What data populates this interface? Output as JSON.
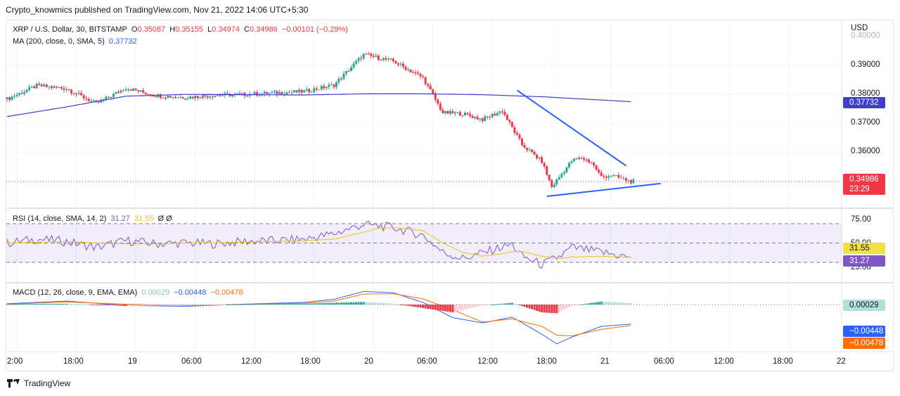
{
  "header": "Crypto_knowmics published on TradingView.com, Nov 21, 2022 14:06 UTC+5:30",
  "footer": {
    "brand": "TradingView"
  },
  "main_legend": {
    "symbol": "XRP / U.S. Dollar, 30, BITSTAMP",
    "open_label": "O",
    "open": "0.35087",
    "high_label": "H",
    "high": "0.35155",
    "low_label": "L",
    "low": "0.34974",
    "close_label": "C",
    "close": "0.34986",
    "change": "−0.00101 (−0.29%)",
    "ma_label": "MA (200, close, 0, SMA, 5)",
    "ma_value": "0.37732"
  },
  "rsi_legend": {
    "label": "RSI (14, close, SMA, 14, 2)",
    "rsi": "31.27",
    "sma": "31.55",
    "extra": "Ø Ø"
  },
  "macd_legend": {
    "label": "MACD (12, 26, close, 9, EMA, EMA)",
    "hist": "0.00029",
    "macd": "−0.00448",
    "signal": "−0.00478"
  },
  "price_axis": {
    "currency": "USD",
    "ticks": [
      "0.40000",
      "0.39000",
      "0.38000",
      "0.37000",
      "0.36000"
    ]
  },
  "rsi_axis": {
    "ticks": [
      "75.00",
      "50.00",
      "25.00"
    ]
  },
  "tags": {
    "ma": "0.37732",
    "last_price": "0.34986",
    "countdown": "23:29",
    "rsi_sma": "31.55",
    "rsi": "31.27",
    "macd_hist": "0.00029",
    "macd": "−0.00448",
    "macd_signal": "−0.00478"
  },
  "time_axis": [
    "2:00",
    "18:00",
    "19",
    "06:00",
    "12:00",
    "18:00",
    "20",
    "06:00",
    "12:00",
    "18:00",
    "21",
    "06:00",
    "12:00",
    "18:00",
    "22"
  ],
  "colors": {
    "up": "#26a69a",
    "down": "#f23645",
    "ma": "#3f3fc8",
    "trend": "#2962ff",
    "rsi": "#7e57c2",
    "rsi_sma": "#e8c413",
    "macd": "#2962ff",
    "signal": "#ff6d00",
    "hist_up_strong": "#26a69a",
    "hist_up_weak": "#b2dfdb",
    "hist_down_strong": "#f23645",
    "hist_down_weak": "#ffcdd2"
  },
  "chart_data": {
    "type": "candlestick",
    "symbol": "XRP / U.S. Dollar",
    "interval": "30",
    "y_range": [
      0.3425,
      0.401
    ],
    "candle_anchors": {
      "x_hours": [
        0,
        6,
        12,
        18,
        24,
        30,
        36,
        42,
        48,
        54,
        60,
        66,
        72,
        78,
        84,
        88,
        92,
        96,
        100,
        104,
        108,
        110,
        114,
        116,
        118,
        120,
        122,
        124,
        126
      ],
      "close": [
        0.3782,
        0.3828,
        0.3818,
        0.3766,
        0.382,
        0.3794,
        0.3788,
        0.3795,
        0.3798,
        0.3803,
        0.3808,
        0.383,
        0.3935,
        0.3912,
        0.3855,
        0.3735,
        0.3732,
        0.3712,
        0.3742,
        0.3625,
        0.3568,
        0.348,
        0.357,
        0.358,
        0.3565,
        0.3515,
        0.352,
        0.3509,
        0.3499
      ]
    },
    "ma_200": {
      "x_hours": [
        0,
        12,
        24,
        36,
        48,
        60,
        72,
        84,
        96,
        108,
        126
      ],
      "values": [
        0.3722,
        0.3755,
        0.3792,
        0.3798,
        0.3797,
        0.3796,
        0.38,
        0.38,
        0.3797,
        0.379,
        0.3773
      ]
    },
    "trendlines": [
      {
        "from": [
          103,
          0.3812
        ],
        "to": [
          125,
          0.3553
        ]
      },
      {
        "from": [
          109,
          0.3448
        ],
        "to": [
          132,
          0.3492
        ]
      }
    ],
    "rsi": {
      "x_hours": [
        0,
        6,
        12,
        18,
        24,
        30,
        36,
        42,
        48,
        54,
        60,
        66,
        72,
        75,
        78,
        84,
        88,
        92,
        96,
        100,
        102,
        104,
        108,
        112,
        114,
        120,
        126
      ],
      "rsi": [
        50,
        55,
        52,
        44,
        53,
        49,
        50,
        49,
        52,
        53,
        55,
        62,
        74,
        72,
        70,
        60,
        38,
        30,
        37,
        45,
        48,
        33,
        22,
        34,
        44,
        38,
        31.27
      ],
      "sma": [
        50,
        51,
        52,
        50,
        49,
        49,
        50,
        50,
        51,
        52,
        53,
        55,
        64,
        69,
        70,
        66,
        50,
        38,
        33,
        36,
        39,
        39,
        33,
        30,
        32,
        33,
        31.55
      ],
      "levels": [
        75,
        50,
        25
      ]
    },
    "macd": {
      "x_hours": [
        0,
        12,
        24,
        36,
        48,
        60,
        66,
        72,
        78,
        84,
        90,
        96,
        102,
        108,
        111,
        114,
        120,
        126
      ],
      "macd": [
        0.0002,
        0.0008,
        -0.0002,
        -0.0004,
        0.0001,
        0.0005,
        0.0012,
        0.003,
        0.0027,
        0.0005,
        -0.003,
        -0.0042,
        -0.0029,
        -0.0068,
        -0.009,
        -0.0075,
        -0.005,
        -0.00448
      ],
      "signal": [
        0.0001,
        0.0006,
        0.0001,
        -0.0002,
        0.0,
        0.0003,
        0.0008,
        0.0024,
        0.0025,
        0.0013,
        -0.0012,
        -0.004,
        -0.0033,
        -0.005,
        -0.007,
        -0.0072,
        -0.0057,
        -0.00478
      ],
      "histogram_last": 0.00029
    }
  }
}
